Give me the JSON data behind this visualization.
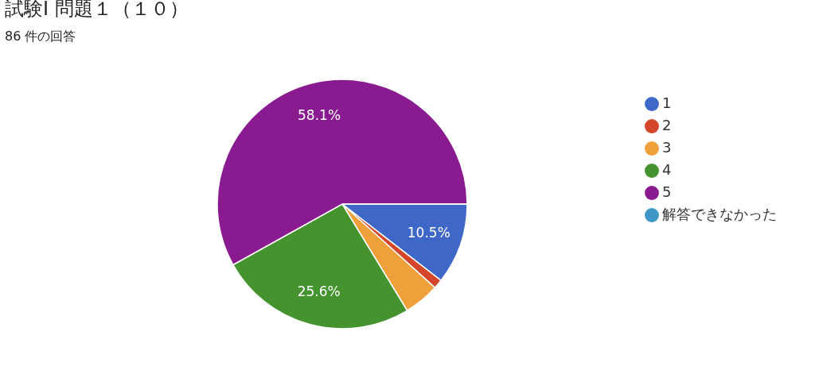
{
  "chart_data": {
    "type": "pie",
    "title": "試験Ⅰ 問題１（１０）",
    "subtitle": "86 件の回答",
    "categories": [
      "1",
      "2",
      "3",
      "4",
      "5",
      "解答できなかった"
    ],
    "values": [
      10.5,
      1.2,
      4.6,
      25.6,
      58.1,
      0
    ],
    "colors": [
      "#3f67c8",
      "#d4462a",
      "#f0a03a",
      "#44932f",
      "#8a1a90",
      "#3f97c7"
    ],
    "value_labels": [
      "10.5%",
      null,
      null,
      "25.6%",
      "58.1%",
      null
    ],
    "legend": "right"
  }
}
